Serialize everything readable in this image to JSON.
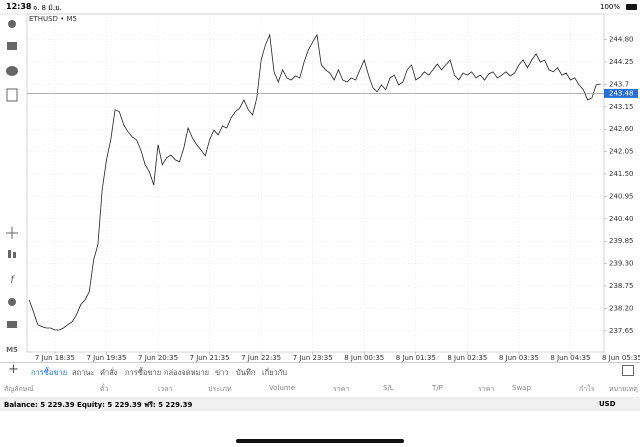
{
  "status_bar": {
    "time": "12:38",
    "date": "จ. 8 มิ.ย.",
    "battery": "100%"
  },
  "chart_data": {
    "type": "line",
    "title": "ETHUSD • M5",
    "period": "M5",
    "color": "#222222",
    "grid": true,
    "current_price": 243.48,
    "ylim": [
      237.13,
      245.43
    ],
    "yticks": [
      237.65,
      {
        "value": 238.2,
        "label": "238.20"
      },
      238.75,
      {
        "value": 239.3,
        "label": "239.30"
      },
      239.85,
      {
        "value": 240.4,
        "label": "240.40"
      },
      240.95,
      {
        "value": 241.5,
        "label": "241.50"
      },
      242.05,
      {
        "value": 242.6,
        "label": "242.60"
      },
      243.15,
      243.7,
      244.25,
      {
        "value": 244.8,
        "label": "244.80"
      }
    ],
    "categories": [
      null,
      null,
      null,
      null,
      null,
      null,
      "7 Jun 18:35",
      null,
      null,
      null,
      null,
      null,
      null,
      null,
      null,
      null,
      null,
      null,
      "7 Jun 19:35",
      null,
      null,
      null,
      null,
      null,
      null,
      null,
      null,
      null,
      null,
      null,
      "7 Jun 20:35",
      null,
      null,
      null,
      null,
      null,
      null,
      null,
      null,
      null,
      null,
      null,
      "7 Jun 21:35",
      null,
      null,
      null,
      null,
      null,
      null,
      null,
      null,
      null,
      null,
      null,
      "7 Jun 22:35",
      null,
      null,
      null,
      null,
      null,
      null,
      null,
      null,
      null,
      null,
      null,
      "7 Jun 23:35",
      null,
      null,
      null,
      null,
      null,
      null,
      null,
      null,
      null,
      null,
      null,
      "8 Jun 00:35",
      null,
      null,
      null,
      null,
      null,
      null,
      null,
      null,
      null,
      null,
      null,
      "8 Jun 01:35",
      null,
      null,
      null,
      null,
      null,
      null,
      null,
      null,
      null,
      null,
      null,
      "8 Jun 02:35",
      null,
      null,
      null,
      null,
      null,
      null,
      null,
      null,
      null,
      null,
      null,
      "8 Jun 03:35",
      null,
      null,
      null,
      null,
      null,
      null,
      null,
      null,
      null,
      null,
      null,
      "8 Jun 04:35",
      null,
      null,
      null,
      null,
      null,
      null,
      null,
      null,
      null,
      null,
      null,
      "8 Jun 05:35"
    ],
    "values": [
      238.41,
      238.12,
      237.8,
      237.75,
      237.72,
      237.72,
      237.67,
      237.67,
      237.72,
      237.8,
      237.87,
      238.04,
      238.29,
      238.41,
      238.61,
      239.39,
      239.76,
      241.11,
      241.85,
      242.34,
      243.08,
      243.03,
      242.71,
      242.54,
      242.41,
      242.34,
      242.09,
      241.73,
      241.55,
      241.23,
      242.22,
      241.73,
      241.9,
      241.97,
      241.85,
      241.8,
      242.14,
      242.63,
      242.39,
      242.22,
      242.09,
      241.95,
      242.34,
      242.58,
      242.46,
      242.68,
      242.63,
      242.88,
      243.03,
      243.12,
      243.32,
      243.08,
      242.95,
      243.37,
      244.3,
      244.67,
      244.92,
      244.01,
      243.76,
      244.06,
      243.86,
      243.81,
      243.91,
      243.86,
      244.25,
      244.55,
      244.74,
      244.92,
      244.18,
      244.06,
      243.98,
      243.81,
      244.06,
      243.81,
      243.76,
      243.86,
      243.81,
      244.06,
      244.3,
      243.93,
      243.62,
      243.52,
      243.69,
      243.57,
      243.86,
      243.93,
      243.69,
      243.76,
      244.06,
      244.18,
      243.81,
      243.88,
      244.01,
      243.93,
      244.06,
      244.2,
      244.06,
      244.18,
      244.3,
      243.93,
      243.81,
      243.98,
      243.93,
      244.01,
      243.86,
      243.93,
      243.81,
      243.96,
      244.01,
      243.86,
      243.93,
      244.01,
      243.91,
      243.98,
      244.18,
      244.3,
      244.11,
      244.3,
      244.45,
      244.25,
      244.3,
      244.06,
      244.01,
      244.11,
      243.93,
      243.98,
      243.81,
      243.86,
      243.69,
      243.57,
      243.32,
      243.37,
      243.69,
      243.71,
      null,
      null,
      null,
      null,
      null
    ]
  },
  "tabs": [
    "การซื้อขาย",
    "สถานะ",
    "คำสั่ง",
    "การซื้อขาย",
    "กล่องจดหมาย",
    "ข่าว",
    "บันทึก",
    "เกี่ยวกับ"
  ],
  "columns": [
    "สัญลักษณ์",
    "ตั๋ว",
    "เวลา",
    "ประเภท",
    "Volume",
    "ราคา",
    "S/L",
    "T/P",
    "ราคา",
    "Swap",
    "กำไร",
    "หมายเหตุ"
  ],
  "footer": {
    "balance": "Balance: 5 229.39 Equity: 5 229.39 ฟรี: 5 229.39",
    "currency": "USD"
  }
}
